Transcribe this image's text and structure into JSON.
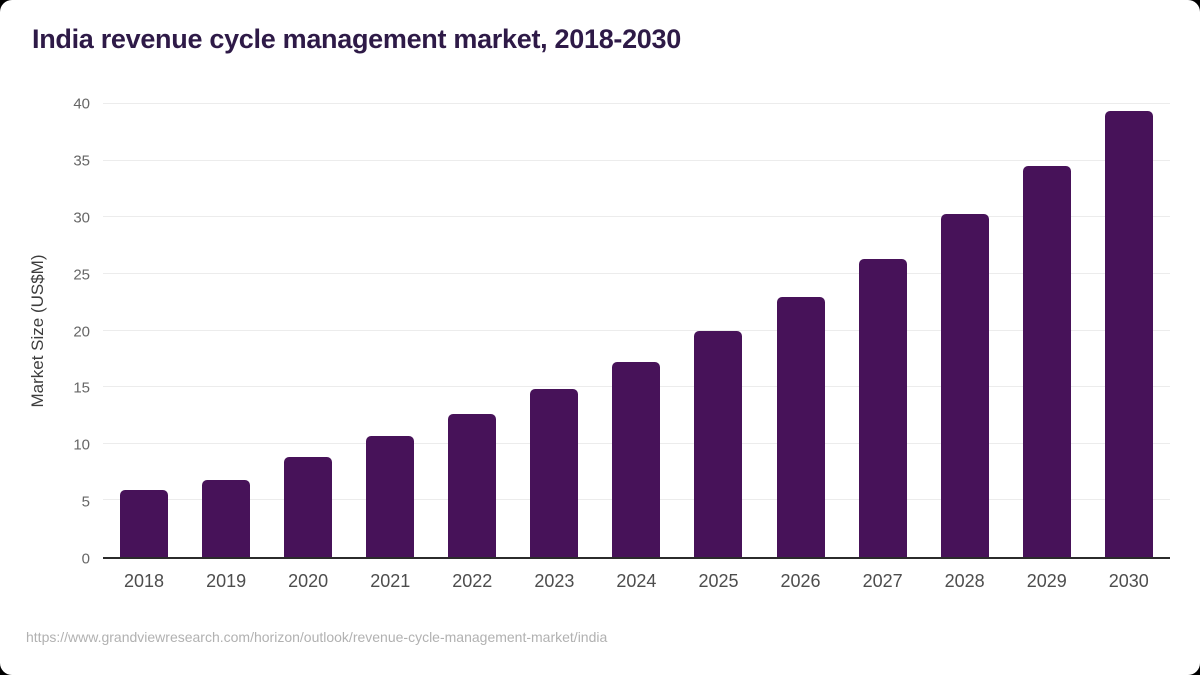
{
  "title": {
    "text": "India revenue cycle management market, 2018-2030",
    "color": "#2e1a47"
  },
  "source": {
    "text": "https://www.grandviewresearch.com/horizon/outlook/revenue-cycle-management-market/india"
  },
  "colors": {
    "background": "#000000",
    "card": "#ffffff",
    "bar": "#471259",
    "gridline": "#ececec",
    "axis_line": "#2b2b2b",
    "y_tick": "#666666",
    "x_tick": "#4d4d4d",
    "source_text": "#b1b1b1"
  },
  "chart_data": {
    "type": "bar",
    "title": "India revenue cycle management market, 2018-2030",
    "categories": [
      "2018",
      "2019",
      "2020",
      "2021",
      "2022",
      "2023",
      "2024",
      "2025",
      "2026",
      "2027",
      "2028",
      "2029",
      "2030"
    ],
    "values": [
      5.9,
      6.8,
      8.8,
      10.7,
      12.6,
      14.8,
      17.2,
      20.0,
      23.0,
      26.3,
      30.3,
      34.5,
      39.4
    ],
    "xlabel": "",
    "ylabel": "Market Size (US$M)",
    "ylim": [
      0,
      40
    ],
    "yticks": [
      0,
      5,
      10,
      15,
      20,
      25,
      30,
      35,
      40
    ],
    "grid": true,
    "legend": false,
    "bar_color": "#471259"
  }
}
